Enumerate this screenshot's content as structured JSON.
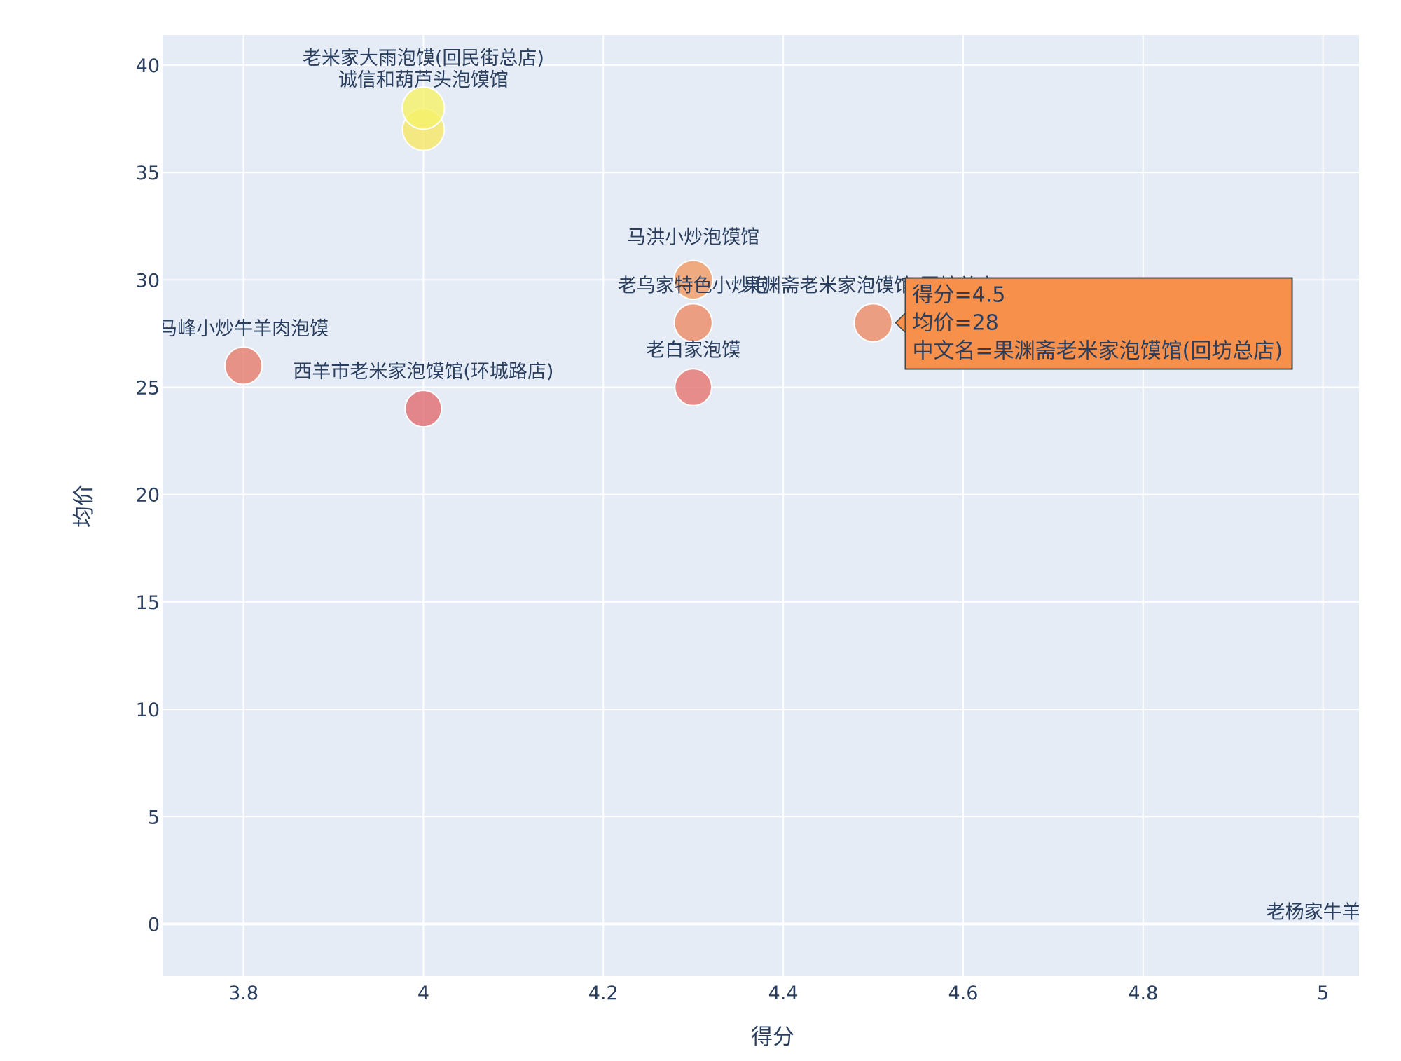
{
  "chart_data": {
    "type": "scatter",
    "xlabel": "得分",
    "ylabel": "均价",
    "xlim": [
      3.71,
      5.04
    ],
    "ylim": [
      -2.4,
      41.4
    ],
    "x_ticks": [
      3.8,
      4,
      4.2,
      4.4,
      4.6,
      4.8,
      5
    ],
    "x_tick_labels": [
      "3.8",
      "4",
      "4.2",
      "4.4",
      "4.6",
      "4.8",
      "5"
    ],
    "y_ticks": [
      0,
      5,
      10,
      15,
      20,
      25,
      30,
      35,
      40
    ],
    "y_tick_labels": [
      "0",
      "5",
      "10",
      "15",
      "20",
      "25",
      "30",
      "35",
      "40"
    ],
    "grid": true,
    "marker_size": "均价",
    "marker_color": "均价",
    "colorscale": [
      "#e26f73",
      "#f5a262",
      "#f6f26a"
    ],
    "points": [
      {
        "x": 4.0,
        "y": 38,
        "name": "老米家大雨泡馍(回民街总店)"
      },
      {
        "x": 4.0,
        "y": 37,
        "name": "诚信和葫芦头泡馍馆"
      },
      {
        "x": 4.3,
        "y": 30,
        "name": "马洪小炒泡馍馆"
      },
      {
        "x": 4.3,
        "y": 28,
        "name": "老乌家特色小炒泡馍馆"
      },
      {
        "x": 4.5,
        "y": 28,
        "name": "果渊斋老米家泡馍馆(回坊总店)"
      },
      {
        "x": 3.8,
        "y": 26,
        "name": "马峰小炒牛羊肉泡馍"
      },
      {
        "x": 4.0,
        "y": 24,
        "name": "西羊市老米家泡馍馆(环城路店)"
      },
      {
        "x": 4.3,
        "y": 25,
        "name": "老白家泡馍"
      },
      {
        "x": 5.0,
        "y": 0,
        "name": "老杨家牛羊肉"
      }
    ],
    "visible_labels": [
      "老米家大雨泡馍(回民街总店)",
      "诚信和葫芦头泡馍馆",
      "马洪小炒泡馍馆",
      "老乌家特色小炒泡",
      "果渊斋老米家泡馍馆(回坊总店)",
      "马峰小炒牛羊肉泡馍",
      "西羊市老米家泡馍馆(环城路店)",
      "老白家泡馍",
      "老杨家牛羊肉"
    ],
    "hover": {
      "color": "#f6904a",
      "lines": [
        "得分=4.5",
        "均价=28",
        "中文名=果渊斋老米家泡馍馆(回坊总店)"
      ]
    }
  }
}
